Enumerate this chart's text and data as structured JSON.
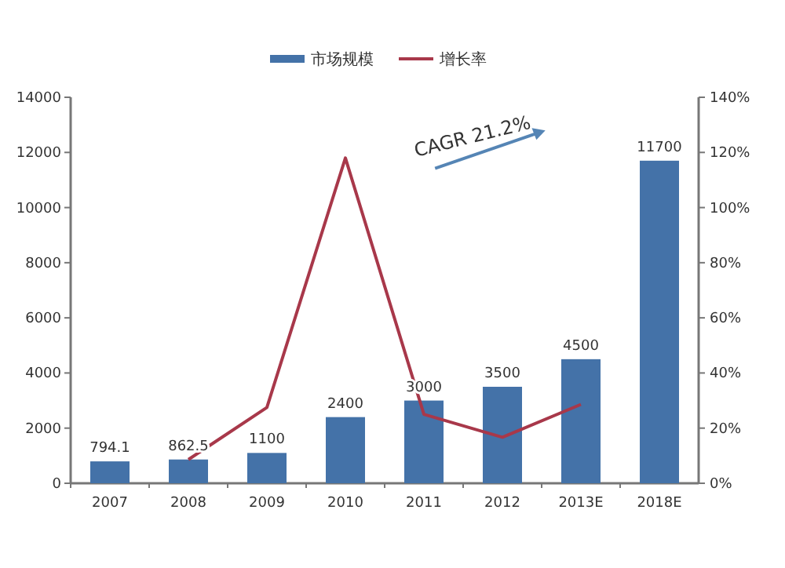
{
  "chart_data": {
    "type": "bar",
    "categories": [
      "2007",
      "2008",
      "2009",
      "2010",
      "2011",
      "2012",
      "2013E",
      "2018E"
    ],
    "series": [
      {
        "name": "市场规模",
        "color": "#4472a8",
        "values": [
          794.1,
          862.5,
          1100,
          2400,
          3000,
          3500,
          4500,
          11700
        ],
        "value_labels": [
          "794.1",
          "862.5",
          "1100",
          "2400",
          "3000",
          "3500",
          "4500",
          "11700"
        ]
      },
      {
        "name": "增长率",
        "type": "line",
        "axis": "y2",
        "color": "#a8384a",
        "values": [
          null,
          8.6,
          27.5,
          118,
          25,
          16.7,
          28.6,
          null
        ]
      }
    ],
    "ylim": [
      0,
      14000
    ],
    "yticks": [
      0,
      2000,
      4000,
      6000,
      8000,
      10000,
      12000,
      14000
    ],
    "y2lim": [
      0,
      140
    ],
    "y2ticks": [
      {
        "value": 0,
        "label": "0%"
      },
      {
        "value": 20,
        "label": "20%"
      },
      {
        "value": 40,
        "label": "40%"
      },
      {
        "value": 60,
        "label": "60%"
      },
      {
        "value": 80,
        "label": "80%"
      },
      {
        "value": 100,
        "label": "100%"
      },
      {
        "value": 120,
        "label": "120%"
      },
      {
        "value": 140,
        "label": "140%"
      }
    ],
    "legend": "top",
    "grid": false,
    "annotations": [
      "CAGR 21.2%"
    ]
  }
}
